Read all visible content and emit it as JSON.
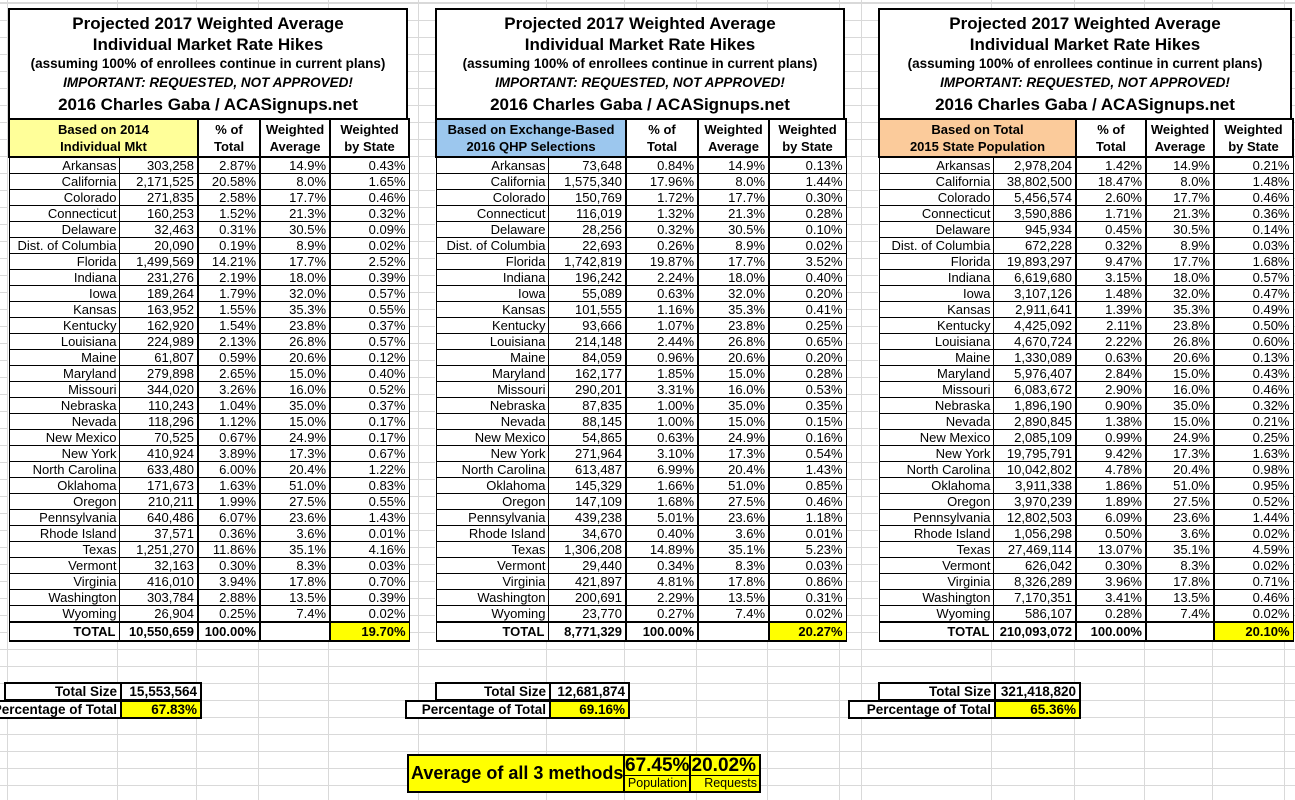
{
  "title": {
    "line1": "Projected 2017 Weighted Average",
    "line2": "Individual Market Rate Hikes",
    "line3": "(assuming 100% of enrollees continue in current plans)",
    "line4": "IMPORTANT: REQUESTED, NOT APPROVED!",
    "line5": "2016 Charles Gaba / ACASignups.net"
  },
  "col_headers": [
    {
      "line1": "% of",
      "line2": "Total"
    },
    {
      "line1": "Weighted",
      "line2": "Average"
    },
    {
      "line1": "Weighted",
      "line2": "by State"
    }
  ],
  "total_label": "TOTAL",
  "total_size_label": "Total Size",
  "percentage_label": "Percentage of Total",
  "colors": {
    "highlight_yellow": "#FFFF00",
    "basis_yellow": "#FFFF99",
    "basis_blue": "#9CC7EE",
    "basis_orange": "#FBCB9B",
    "gridline": "#D9D9D9"
  },
  "tables": [
    {
      "basis_line1": "Based on 2014",
      "basis_line2": "Individual Mkt",
      "basis_color": "#FFFF99",
      "rows": [
        [
          "Arkansas",
          "303,258",
          "2.87%",
          "14.9%",
          "0.43%"
        ],
        [
          "California",
          "2,171,525",
          "20.58%",
          "8.0%",
          "1.65%"
        ],
        [
          "Colorado",
          "271,835",
          "2.58%",
          "17.7%",
          "0.46%"
        ],
        [
          "Connecticut",
          "160,253",
          "1.52%",
          "21.3%",
          "0.32%"
        ],
        [
          "Delaware",
          "32,463",
          "0.31%",
          "30.5%",
          "0.09%"
        ],
        [
          "Dist. of Columbia",
          "20,090",
          "0.19%",
          "8.9%",
          "0.02%"
        ],
        [
          "Florida",
          "1,499,569",
          "14.21%",
          "17.7%",
          "2.52%"
        ],
        [
          "Indiana",
          "231,276",
          "2.19%",
          "18.0%",
          "0.39%"
        ],
        [
          "Iowa",
          "189,264",
          "1.79%",
          "32.0%",
          "0.57%"
        ],
        [
          "Kansas",
          "163,952",
          "1.55%",
          "35.3%",
          "0.55%"
        ],
        [
          "Kentucky",
          "162,920",
          "1.54%",
          "23.8%",
          "0.37%"
        ],
        [
          "Louisiana",
          "224,989",
          "2.13%",
          "26.8%",
          "0.57%"
        ],
        [
          "Maine",
          "61,807",
          "0.59%",
          "20.6%",
          "0.12%"
        ],
        [
          "Maryland",
          "279,898",
          "2.65%",
          "15.0%",
          "0.40%"
        ],
        [
          "Missouri",
          "344,020",
          "3.26%",
          "16.0%",
          "0.52%"
        ],
        [
          "Nebraska",
          "110,243",
          "1.04%",
          "35.0%",
          "0.37%"
        ],
        [
          "Nevada",
          "118,296",
          "1.12%",
          "15.0%",
          "0.17%"
        ],
        [
          "New Mexico",
          "70,525",
          "0.67%",
          "24.9%",
          "0.17%"
        ],
        [
          "New York",
          "410,924",
          "3.89%",
          "17.3%",
          "0.67%"
        ],
        [
          "North Carolina",
          "633,480",
          "6.00%",
          "20.4%",
          "1.22%"
        ],
        [
          "Oklahoma",
          "171,673",
          "1.63%",
          "51.0%",
          "0.83%"
        ],
        [
          "Oregon",
          "210,211",
          "1.99%",
          "27.5%",
          "0.55%"
        ],
        [
          "Pennsylvania",
          "640,486",
          "6.07%",
          "23.6%",
          "1.43%"
        ],
        [
          "Rhode Island",
          "37,571",
          "0.36%",
          "3.6%",
          "0.01%"
        ],
        [
          "Texas",
          "1,251,270",
          "11.86%",
          "35.1%",
          "4.16%"
        ],
        [
          "Vermont",
          "32,163",
          "0.30%",
          "8.3%",
          "0.03%"
        ],
        [
          "Virginia",
          "416,010",
          "3.94%",
          "17.8%",
          "0.70%"
        ],
        [
          "Washington",
          "303,784",
          "2.88%",
          "13.5%",
          "0.39%"
        ],
        [
          "Wyoming",
          "26,904",
          "0.25%",
          "7.4%",
          "0.02%"
        ]
      ],
      "total": {
        "value": "10,550,659",
        "pct": "100.00%",
        "weighted_by_state": "19.70%"
      },
      "total_size": "15,553,564",
      "percentage_of_total": "67.83%"
    },
    {
      "basis_line1": "Based on Exchange-Based",
      "basis_line2": "2016 QHP Selections",
      "basis_color": "#9CC7EE",
      "rows": [
        [
          "Arkansas",
          "73,648",
          "0.84%",
          "14.9%",
          "0.13%"
        ],
        [
          "California",
          "1,575,340",
          "17.96%",
          "8.0%",
          "1.44%"
        ],
        [
          "Colorado",
          "150,769",
          "1.72%",
          "17.7%",
          "0.30%"
        ],
        [
          "Connecticut",
          "116,019",
          "1.32%",
          "21.3%",
          "0.28%"
        ],
        [
          "Delaware",
          "28,256",
          "0.32%",
          "30.5%",
          "0.10%"
        ],
        [
          "Dist. of Columbia",
          "22,693",
          "0.26%",
          "8.9%",
          "0.02%"
        ],
        [
          "Florida",
          "1,742,819",
          "19.87%",
          "17.7%",
          "3.52%"
        ],
        [
          "Indiana",
          "196,242",
          "2.24%",
          "18.0%",
          "0.40%"
        ],
        [
          "Iowa",
          "55,089",
          "0.63%",
          "32.0%",
          "0.20%"
        ],
        [
          "Kansas",
          "101,555",
          "1.16%",
          "35.3%",
          "0.41%"
        ],
        [
          "Kentucky",
          "93,666",
          "1.07%",
          "23.8%",
          "0.25%"
        ],
        [
          "Louisiana",
          "214,148",
          "2.44%",
          "26.8%",
          "0.65%"
        ],
        [
          "Maine",
          "84,059",
          "0.96%",
          "20.6%",
          "0.20%"
        ],
        [
          "Maryland",
          "162,177",
          "1.85%",
          "15.0%",
          "0.28%"
        ],
        [
          "Missouri",
          "290,201",
          "3.31%",
          "16.0%",
          "0.53%"
        ],
        [
          "Nebraska",
          "87,835",
          "1.00%",
          "35.0%",
          "0.35%"
        ],
        [
          "Nevada",
          "88,145",
          "1.00%",
          "15.0%",
          "0.15%"
        ],
        [
          "New Mexico",
          "54,865",
          "0.63%",
          "24.9%",
          "0.16%"
        ],
        [
          "New York",
          "271,964",
          "3.10%",
          "17.3%",
          "0.54%"
        ],
        [
          "North Carolina",
          "613,487",
          "6.99%",
          "20.4%",
          "1.43%"
        ],
        [
          "Oklahoma",
          "145,329",
          "1.66%",
          "51.0%",
          "0.85%"
        ],
        [
          "Oregon",
          "147,109",
          "1.68%",
          "27.5%",
          "0.46%"
        ],
        [
          "Pennsylvania",
          "439,238",
          "5.01%",
          "23.6%",
          "1.18%"
        ],
        [
          "Rhode Island",
          "34,670",
          "0.40%",
          "3.6%",
          "0.01%"
        ],
        [
          "Texas",
          "1,306,208",
          "14.89%",
          "35.1%",
          "5.23%"
        ],
        [
          "Vermont",
          "29,440",
          "0.34%",
          "8.3%",
          "0.03%"
        ],
        [
          "Virginia",
          "421,897",
          "4.81%",
          "17.8%",
          "0.86%"
        ],
        [
          "Washington",
          "200,691",
          "2.29%",
          "13.5%",
          "0.31%"
        ],
        [
          "Wyoming",
          "23,770",
          "0.27%",
          "7.4%",
          "0.02%"
        ]
      ],
      "total": {
        "value": "8,771,329",
        "pct": "100.00%",
        "weighted_by_state": "20.27%"
      },
      "total_size": "12,681,874",
      "percentage_of_total": "69.16%"
    },
    {
      "basis_line1": "Based on Total",
      "basis_line2": "2015 State Population",
      "basis_color": "#FBCB9B",
      "rows": [
        [
          "Arkansas",
          "2,978,204",
          "1.42%",
          "14.9%",
          "0.21%"
        ],
        [
          "California",
          "38,802,500",
          "18.47%",
          "8.0%",
          "1.48%"
        ],
        [
          "Colorado",
          "5,456,574",
          "2.60%",
          "17.7%",
          "0.46%"
        ],
        [
          "Connecticut",
          "3,590,886",
          "1.71%",
          "21.3%",
          "0.36%"
        ],
        [
          "Delaware",
          "945,934",
          "0.45%",
          "30.5%",
          "0.14%"
        ],
        [
          "Dist. of Columbia",
          "672,228",
          "0.32%",
          "8.9%",
          "0.03%"
        ],
        [
          "Florida",
          "19,893,297",
          "9.47%",
          "17.7%",
          "1.68%"
        ],
        [
          "Indiana",
          "6,619,680",
          "3.15%",
          "18.0%",
          "0.57%"
        ],
        [
          "Iowa",
          "3,107,126",
          "1.48%",
          "32.0%",
          "0.47%"
        ],
        [
          "Kansas",
          "2,911,641",
          "1.39%",
          "35.3%",
          "0.49%"
        ],
        [
          "Kentucky",
          "4,425,092",
          "2.11%",
          "23.8%",
          "0.50%"
        ],
        [
          "Louisiana",
          "4,670,724",
          "2.22%",
          "26.8%",
          "0.60%"
        ],
        [
          "Maine",
          "1,330,089",
          "0.63%",
          "20.6%",
          "0.13%"
        ],
        [
          "Maryland",
          "5,976,407",
          "2.84%",
          "15.0%",
          "0.43%"
        ],
        [
          "Missouri",
          "6,083,672",
          "2.90%",
          "16.0%",
          "0.46%"
        ],
        [
          "Nebraska",
          "1,896,190",
          "0.90%",
          "35.0%",
          "0.32%"
        ],
        [
          "Nevada",
          "2,890,845",
          "1.38%",
          "15.0%",
          "0.21%"
        ],
        [
          "New Mexico",
          "2,085,109",
          "0.99%",
          "24.9%",
          "0.25%"
        ],
        [
          "New York",
          "19,795,791",
          "9.42%",
          "17.3%",
          "1.63%"
        ],
        [
          "North Carolina",
          "10,042,802",
          "4.78%",
          "20.4%",
          "0.98%"
        ],
        [
          "Oklahoma",
          "3,911,338",
          "1.86%",
          "51.0%",
          "0.95%"
        ],
        [
          "Oregon",
          "3,970,239",
          "1.89%",
          "27.5%",
          "0.52%"
        ],
        [
          "Pennsylvania",
          "12,802,503",
          "6.09%",
          "23.6%",
          "1.44%"
        ],
        [
          "Rhode Island",
          "1,056,298",
          "0.50%",
          "3.6%",
          "0.02%"
        ],
        [
          "Texas",
          "27,469,114",
          "13.07%",
          "35.1%",
          "4.59%"
        ],
        [
          "Vermont",
          "626,042",
          "0.30%",
          "8.3%",
          "0.02%"
        ],
        [
          "Virginia",
          "8,326,289",
          "3.96%",
          "17.8%",
          "0.71%"
        ],
        [
          "Washington",
          "7,170,351",
          "3.41%",
          "13.5%",
          "0.46%"
        ],
        [
          "Wyoming",
          "586,107",
          "0.28%",
          "7.4%",
          "0.02%"
        ]
      ],
      "total": {
        "value": "210,093,072",
        "pct": "100.00%",
        "weighted_by_state": "20.10%"
      },
      "total_size": "321,418,820",
      "percentage_of_total": "65.36%"
    }
  ],
  "average": {
    "label": "Average of all 3 methods:",
    "values": [
      {
        "value": "67.45%",
        "label": "Population"
      },
      {
        "value": "20.02%",
        "label": "Requests"
      }
    ]
  }
}
